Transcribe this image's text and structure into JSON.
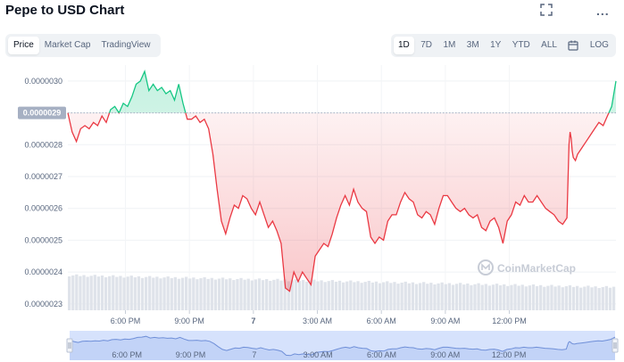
{
  "title": "Pepe to USD Chart",
  "header_icons": {
    "fullscreen": "fullscreen-icon",
    "more": "more-icon",
    "more_label": "..."
  },
  "tabs_left": [
    {
      "label": "Price",
      "active": true
    },
    {
      "label": "Market Cap",
      "active": false
    },
    {
      "label": "TradingView",
      "active": false
    }
  ],
  "tabs_right": [
    {
      "label": "1D",
      "active": true
    },
    {
      "label": "7D",
      "active": false
    },
    {
      "label": "1M",
      "active": false
    },
    {
      "label": "3M",
      "active": false
    },
    {
      "label": "1Y",
      "active": false
    },
    {
      "label": "YTD",
      "active": false
    },
    {
      "label": "ALL",
      "active": false
    }
  ],
  "calendar_icon": "calendar-icon",
  "log_label": "LOG",
  "current_price_label": "0.0000029",
  "watermark": "CoinMarketCap",
  "colors": {
    "up": "#16c784",
    "down": "#ea3943",
    "text": "#58667e",
    "navigator": "#d6e2fc"
  },
  "chart_data": {
    "type": "area",
    "y_ticks": [
      "0.0000030",
      "0.0000029",
      "0.0000028",
      "0.0000027",
      "0.0000026",
      "0.0000025",
      "0.0000024",
      "0.0000023"
    ],
    "ylim": [
      2.28e-06,
      3.05e-06
    ],
    "x_ticks": [
      "6:00 PM",
      "9:00 PM",
      "7",
      "3:00 AM",
      "6:00 AM",
      "9:00 AM",
      "12:00 PM"
    ],
    "x_tick_hours": [
      18,
      21,
      24,
      27,
      30,
      33,
      36
    ],
    "xlim_hours": [
      15.3,
      38.9
    ],
    "baseline": 2.9e-06,
    "series": [
      {
        "values": [
          [
            15.3,
            2.9
          ],
          [
            15.5,
            2.84
          ],
          [
            15.7,
            2.81
          ],
          [
            15.9,
            2.85
          ],
          [
            16.1,
            2.86
          ],
          [
            16.3,
            2.85
          ],
          [
            16.5,
            2.87
          ],
          [
            16.7,
            2.86
          ],
          [
            16.9,
            2.89
          ],
          [
            17.1,
            2.87
          ],
          [
            17.3,
            2.91
          ],
          [
            17.5,
            2.92
          ],
          [
            17.7,
            2.9
          ],
          [
            17.9,
            2.93
          ],
          [
            18.1,
            2.92
          ],
          [
            18.3,
            2.95
          ],
          [
            18.5,
            2.99
          ],
          [
            18.7,
            3.0
          ],
          [
            18.9,
            3.03
          ],
          [
            19.1,
            2.97
          ],
          [
            19.3,
            2.99
          ],
          [
            19.5,
            2.97
          ],
          [
            19.7,
            2.98
          ],
          [
            19.9,
            2.96
          ],
          [
            20.1,
            2.97
          ],
          [
            20.3,
            2.94
          ],
          [
            20.5,
            2.99
          ],
          [
            20.7,
            2.93
          ],
          [
            20.9,
            2.88
          ],
          [
            21.1,
            2.88
          ],
          [
            21.3,
            2.89
          ],
          [
            21.5,
            2.87
          ],
          [
            21.7,
            2.88
          ],
          [
            21.9,
            2.85
          ],
          [
            22.1,
            2.77
          ],
          [
            22.3,
            2.66
          ],
          [
            22.5,
            2.56
          ],
          [
            22.7,
            2.52
          ],
          [
            22.9,
            2.57
          ],
          [
            23.1,
            2.61
          ],
          [
            23.3,
            2.6
          ],
          [
            23.5,
            2.64
          ],
          [
            23.7,
            2.63
          ],
          [
            23.9,
            2.6
          ],
          [
            24.1,
            2.58
          ],
          [
            24.3,
            2.62
          ],
          [
            24.5,
            2.58
          ],
          [
            24.7,
            2.54
          ],
          [
            24.9,
            2.56
          ],
          [
            25.1,
            2.53
          ],
          [
            25.3,
            2.49
          ],
          [
            25.5,
            2.35
          ],
          [
            25.7,
            2.34
          ],
          [
            25.9,
            2.4
          ],
          [
            26.1,
            2.37
          ],
          [
            26.3,
            2.4
          ],
          [
            26.5,
            2.38
          ],
          [
            26.7,
            2.36
          ],
          [
            26.9,
            2.45
          ],
          [
            27.1,
            2.47
          ],
          [
            27.3,
            2.49
          ],
          [
            27.5,
            2.48
          ],
          [
            27.7,
            2.52
          ],
          [
            27.9,
            2.57
          ],
          [
            28.1,
            2.61
          ],
          [
            28.3,
            2.64
          ],
          [
            28.5,
            2.61
          ],
          [
            28.7,
            2.66
          ],
          [
            28.9,
            2.62
          ],
          [
            29.1,
            2.6
          ],
          [
            29.3,
            2.59
          ],
          [
            29.5,
            2.51
          ],
          [
            29.7,
            2.49
          ],
          [
            29.9,
            2.51
          ],
          [
            30.1,
            2.5
          ],
          [
            30.3,
            2.56
          ],
          [
            30.5,
            2.58
          ],
          [
            30.7,
            2.58
          ],
          [
            30.9,
            2.62
          ],
          [
            31.1,
            2.65
          ],
          [
            31.3,
            2.63
          ],
          [
            31.5,
            2.62
          ],
          [
            31.7,
            2.58
          ],
          [
            31.9,
            2.57
          ],
          [
            32.1,
            2.59
          ],
          [
            32.3,
            2.58
          ],
          [
            32.5,
            2.55
          ],
          [
            32.7,
            2.6
          ],
          [
            32.9,
            2.64
          ],
          [
            33.1,
            2.64
          ],
          [
            33.3,
            2.62
          ],
          [
            33.5,
            2.6
          ],
          [
            33.7,
            2.59
          ],
          [
            33.9,
            2.6
          ],
          [
            34.1,
            2.58
          ],
          [
            34.3,
            2.57
          ],
          [
            34.5,
            2.58
          ],
          [
            34.7,
            2.54
          ],
          [
            34.9,
            2.53
          ],
          [
            35.1,
            2.56
          ],
          [
            35.3,
            2.57
          ],
          [
            35.5,
            2.54
          ],
          [
            35.7,
            2.49
          ],
          [
            35.9,
            2.56
          ],
          [
            36.1,
            2.58
          ],
          [
            36.3,
            2.62
          ],
          [
            36.5,
            2.61
          ],
          [
            36.7,
            2.64
          ],
          [
            36.9,
            2.62
          ],
          [
            37.1,
            2.62
          ],
          [
            37.3,
            2.64
          ],
          [
            37.5,
            2.62
          ],
          [
            37.7,
            2.6
          ],
          [
            37.9,
            2.59
          ],
          [
            38.1,
            2.58
          ],
          [
            38.3,
            2.56
          ],
          [
            38.5,
            2.55
          ],
          [
            38.7,
            2.57
          ],
          [
            38.8,
            2.8
          ],
          [
            38.85,
            2.84
          ],
          [
            38.9,
            2.82
          ],
          [
            38.95,
            2.78
          ],
          [
            39.0,
            2.76
          ],
          [
            39.1,
            2.75
          ],
          [
            39.2,
            2.77
          ],
          [
            39.4,
            2.79
          ],
          [
            39.6,
            2.81
          ],
          [
            39.8,
            2.83
          ],
          [
            40.0,
            2.85
          ],
          [
            40.2,
            2.87
          ],
          [
            40.4,
            2.86
          ],
          [
            40.6,
            2.89
          ],
          [
            40.8,
            2.92
          ],
          [
            41.0,
            3.0
          ]
        ]
      }
    ],
    "x_axis_note": "",
    "volume": "decreasing"
  }
}
